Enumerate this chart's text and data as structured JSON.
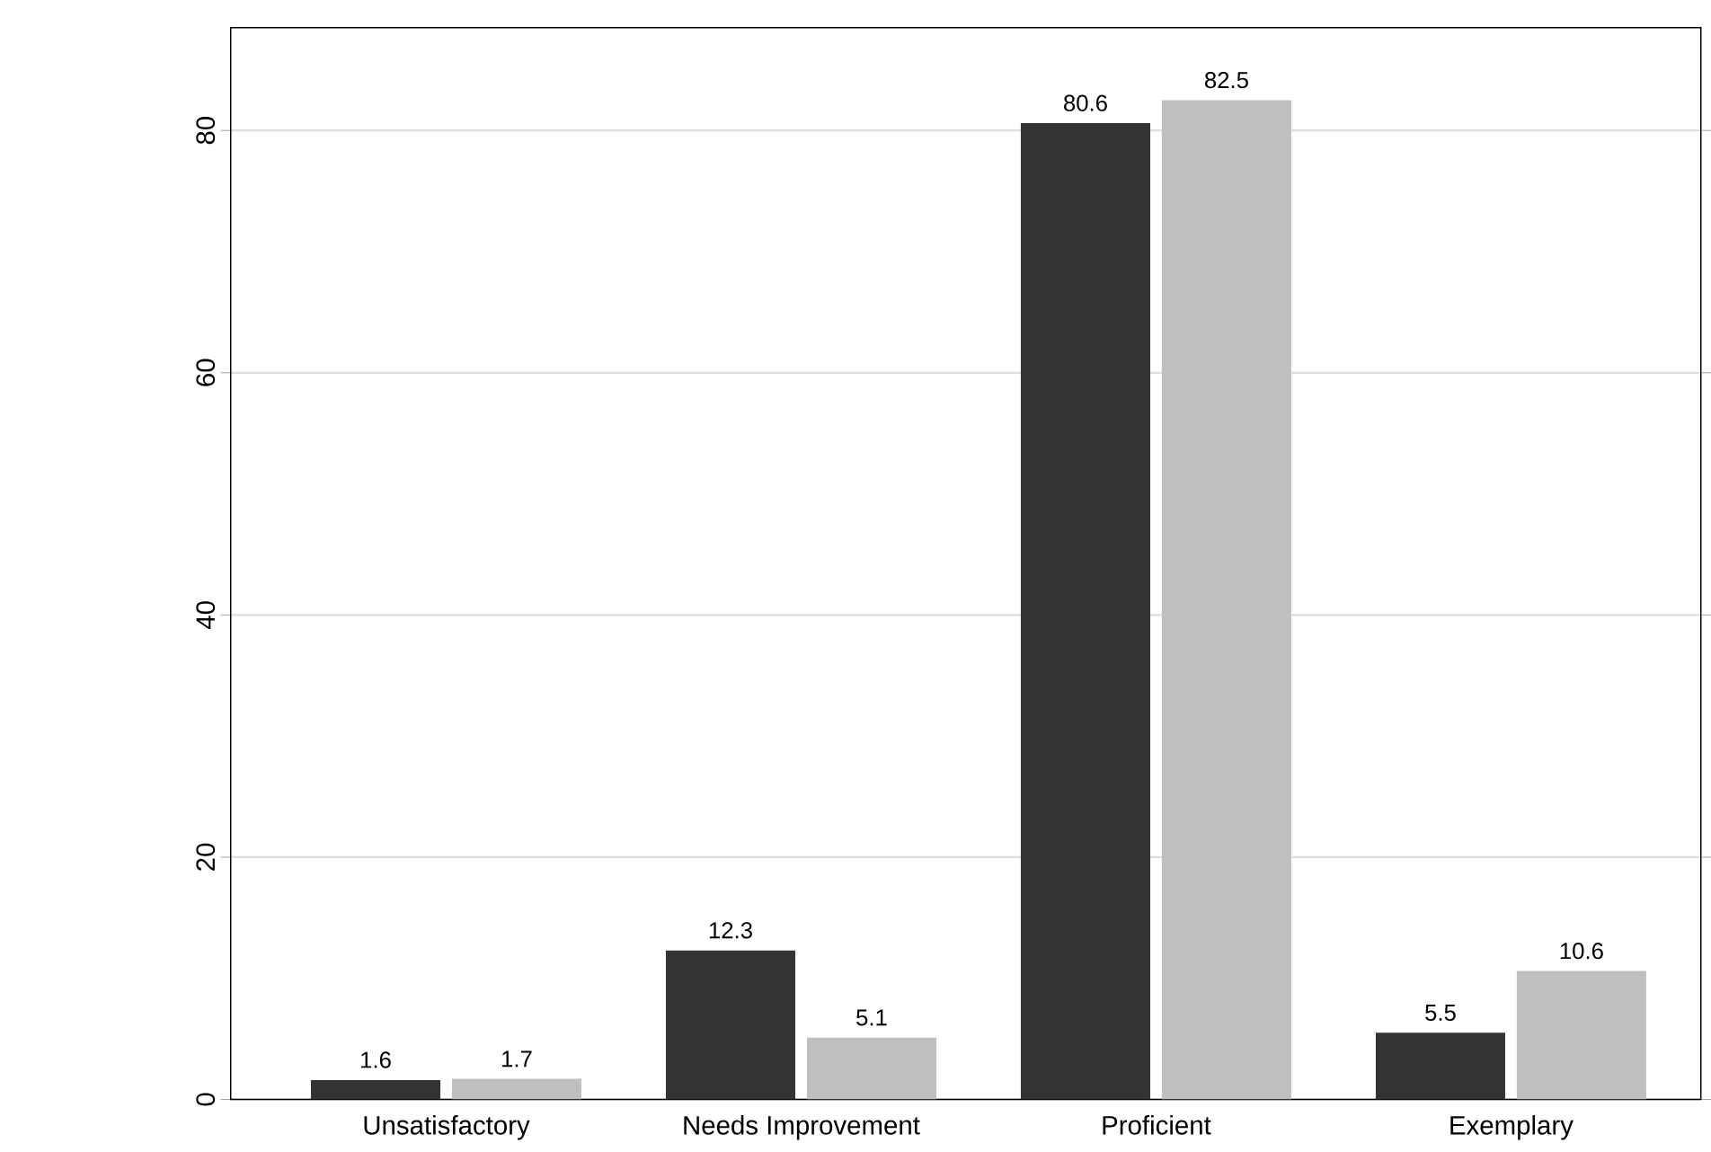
{
  "chart_data": {
    "type": "bar",
    "categories": [
      "Unsatisfactory",
      "Needs Improvement",
      "Proficient",
      "Exemplary"
    ],
    "series": [
      {
        "color": "#333333",
        "values": [
          1.6,
          12.3,
          80.6,
          5.5
        ]
      },
      {
        "color": "#bfbfbf",
        "values": [
          1.7,
          5.1,
          82.5,
          10.6
        ]
      }
    ],
    "ylim": [
      0,
      88.5
    ],
    "yticks": [
      0,
      20,
      40,
      60,
      80
    ],
    "grid": "y",
    "data_labels": true
  }
}
